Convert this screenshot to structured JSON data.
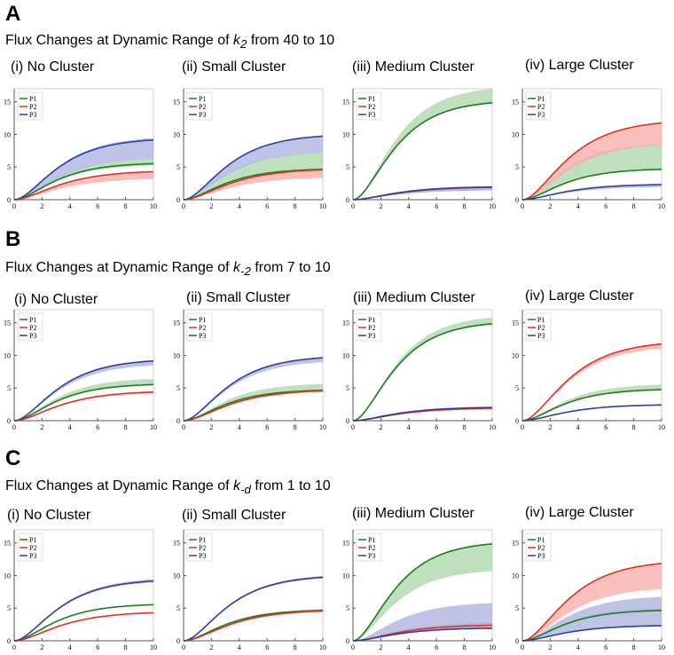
{
  "sections": [
    {
      "letter": "A",
      "title": "Flux Changes at Dynamic Range of k2 from 40 to 10",
      "title_prefix": "Flux Changes at Dynamic Range of ",
      "param_base": "k",
      "param_sub": "2",
      "title_suffix": " from 40 to 10"
    },
    {
      "letter": "B",
      "title": "Flux Changes at Dynamic Range of k-2 from 7 to 10",
      "title_prefix": "Flux Changes at Dynamic Range of ",
      "param_base": "k",
      "param_sub": "-2",
      "title_suffix": " from 7 to 10"
    },
    {
      "letter": "C",
      "title": "Flux Changes at Dynamic Range of k-d from 1 to 10",
      "title_prefix": "Flux Changes at Dynamic Range of ",
      "param_base": "k",
      "param_sub": "-d",
      "title_suffix": " from 1 to 10"
    }
  ],
  "panel_titles": [
    "(i) No Cluster",
    "(ii) Small Cluster",
    "(iii) Medium Cluster",
    "(iv) Large Cluster"
  ],
  "colors": {
    "P1": "#1e7a1e",
    "P2": "#e0301e",
    "P3": "#2b3fa0",
    "P1_band": "#a9d6a6",
    "P2_band": "#f5aaa6",
    "P3_band": "#aab0dd"
  },
  "chart_data": [
    {
      "type": "line",
      "section": "A",
      "title": "(i) No Cluster",
      "xlim": [
        0,
        10
      ],
      "ylim": [
        0,
        17
      ],
      "xticks": [
        0,
        2,
        4,
        6,
        8,
        10
      ],
      "yticks": [
        0,
        5,
        10,
        15
      ],
      "legend": "top-left",
      "series": [
        {
          "name": "P1",
          "final": 5.7,
          "band": [
            5.4,
            6.5
          ]
        },
        {
          "name": "P2",
          "final": 4.5,
          "band": [
            3.3,
            4.5
          ]
        },
        {
          "name": "P3",
          "final": 9.5,
          "band": [
            6.5,
            9.8
          ]
        }
      ]
    },
    {
      "type": "line",
      "section": "A",
      "title": "(ii) Small Cluster",
      "xlim": [
        0,
        10
      ],
      "ylim": [
        0,
        17
      ],
      "xticks": [
        0,
        2,
        4,
        6,
        8,
        10
      ],
      "yticks": [
        0,
        5,
        10,
        15
      ],
      "legend": "top-left",
      "series": [
        {
          "name": "P1",
          "final": 4.8,
          "band": [
            4.8,
            7.5
          ]
        },
        {
          "name": "P2",
          "final": 4.8,
          "band": [
            3.5,
            4.8
          ]
        },
        {
          "name": "P3",
          "final": 10.1,
          "band": [
            7.5,
            10.1
          ]
        }
      ]
    },
    {
      "type": "line",
      "section": "A",
      "title": "(iii) Medium Cluster",
      "xlim": [
        0,
        10
      ],
      "ylim": [
        0,
        17
      ],
      "xticks": [
        0,
        2,
        4,
        6,
        8,
        10
      ],
      "yticks": [
        0,
        5,
        10,
        15
      ],
      "legend": "top-left",
      "series": [
        {
          "name": "P1",
          "final": 15.3,
          "band": [
            15.3,
            17.5
          ]
        },
        {
          "name": "P2",
          "final": 2.0,
          "band": [
            1.5,
            2.0
          ]
        },
        {
          "name": "P3",
          "final": 2.0,
          "band": [
            1.5,
            2.2
          ]
        }
      ]
    },
    {
      "type": "line",
      "section": "A",
      "title": "(iv) Large Cluster",
      "xlim": [
        0,
        10
      ],
      "ylim": [
        0,
        17
      ],
      "xticks": [
        0,
        2,
        4,
        6,
        8,
        10
      ],
      "yticks": [
        0,
        5,
        10,
        15
      ],
      "legend": "top-left",
      "series": [
        {
          "name": "P1",
          "final": 4.8,
          "band": [
            4.8,
            8.8
          ]
        },
        {
          "name": "P2",
          "final": 12.3,
          "band": [
            8.8,
            12.3
          ]
        },
        {
          "name": "P3",
          "final": 2.4,
          "band": [
            2.0,
            2.4
          ]
        }
      ]
    },
    {
      "type": "line",
      "section": "B",
      "title": "(i) No Cluster",
      "xlim": [
        0,
        10
      ],
      "ylim": [
        0,
        17
      ],
      "xticks": [
        0,
        2,
        4,
        6,
        8,
        10
      ],
      "yticks": [
        0,
        5,
        10,
        15
      ],
      "legend": "top-left",
      "series": [
        {
          "name": "P1",
          "final": 5.7,
          "band": [
            5.7,
            6.6
          ]
        },
        {
          "name": "P2",
          "final": 4.6,
          "band": [
            4.4,
            4.6
          ]
        },
        {
          "name": "P3",
          "final": 9.5,
          "band": [
            8.8,
            9.6
          ]
        }
      ]
    },
    {
      "type": "line",
      "section": "B",
      "title": "(ii) Small Cluster",
      "xlim": [
        0,
        10
      ],
      "ylim": [
        0,
        17
      ],
      "xticks": [
        0,
        2,
        4,
        6,
        8,
        10
      ],
      "yticks": [
        0,
        5,
        10,
        15
      ],
      "legend": "top-left",
      "series": [
        {
          "name": "P1",
          "final": 4.8,
          "band": [
            4.8,
            5.8
          ]
        },
        {
          "name": "P2",
          "final": 4.8,
          "band": [
            4.6,
            4.8
          ]
        },
        {
          "name": "P3",
          "final": 10.0,
          "band": [
            9.3,
            10.1
          ]
        }
      ]
    },
    {
      "type": "line",
      "section": "B",
      "title": "(iii) Medium Cluster",
      "xlim": [
        0,
        10
      ],
      "ylim": [
        0,
        17
      ],
      "xticks": [
        0,
        2,
        4,
        6,
        8,
        10
      ],
      "yticks": [
        0,
        5,
        10,
        15
      ],
      "legend": "top-left",
      "series": [
        {
          "name": "P1",
          "final": 15.3,
          "band": [
            15.3,
            16.3
          ]
        },
        {
          "name": "P2",
          "final": 2.0,
          "band": [
            1.8,
            2.0
          ]
        },
        {
          "name": "P3",
          "final": 2.1,
          "band": [
            2.0,
            2.2
          ]
        }
      ]
    },
    {
      "type": "line",
      "section": "B",
      "title": "(iv) Large Cluster",
      "xlim": [
        0,
        10
      ],
      "ylim": [
        0,
        17
      ],
      "xticks": [
        0,
        2,
        4,
        6,
        8,
        10
      ],
      "yticks": [
        0,
        5,
        10,
        15
      ],
      "legend": "top-left",
      "series": [
        {
          "name": "P1",
          "final": 4.9,
          "band": [
            4.9,
            5.7
          ]
        },
        {
          "name": "P2",
          "final": 12.3,
          "band": [
            11.6,
            12.3
          ]
        },
        {
          "name": "P3",
          "final": 2.5,
          "band": [
            2.4,
            2.5
          ]
        }
      ]
    },
    {
      "type": "line",
      "section": "C",
      "title": "(i) No Cluster",
      "xlim": [
        0,
        10
      ],
      "ylim": [
        0,
        17
      ],
      "xticks": [
        0,
        2,
        4,
        6,
        8,
        10
      ],
      "yticks": [
        0,
        5,
        10,
        15
      ],
      "legend": "top-left",
      "series": [
        {
          "name": "P1",
          "final": 5.7,
          "band": [
            5.6,
            5.8
          ]
        },
        {
          "name": "P2",
          "final": 4.5,
          "band": [
            4.4,
            4.6
          ]
        },
        {
          "name": "P3",
          "final": 9.5,
          "band": [
            9.3,
            9.8
          ]
        }
      ]
    },
    {
      "type": "line",
      "section": "C",
      "title": "(ii) Small Cluster",
      "xlim": [
        0,
        10
      ],
      "ylim": [
        0,
        17
      ],
      "xticks": [
        0,
        2,
        4,
        6,
        8,
        10
      ],
      "yticks": [
        0,
        5,
        10,
        15
      ],
      "legend": "top-left",
      "series": [
        {
          "name": "P1",
          "final": 4.8,
          "band": [
            4.7,
            5.0
          ]
        },
        {
          "name": "P2",
          "final": 4.8,
          "band": [
            4.6,
            5.0
          ]
        },
        {
          "name": "P3",
          "final": 10.1,
          "band": [
            9.9,
            10.3
          ]
        }
      ]
    },
    {
      "type": "line",
      "section": "C",
      "title": "(iii) Medium Cluster",
      "xlim": [
        0,
        10
      ],
      "ylim": [
        0,
        17
      ],
      "xticks": [
        0,
        2,
        4,
        6,
        8,
        10
      ],
      "yticks": [
        0,
        5,
        10,
        15
      ],
      "legend": "top-left",
      "series": [
        {
          "name": "P1",
          "final": 15.3,
          "band": [
            11.0,
            15.3
          ]
        },
        {
          "name": "P2",
          "final": 2.5,
          "band": [
            2.0,
            3.0
          ]
        },
        {
          "name": "P3",
          "final": 2.0,
          "band": [
            2.0,
            6.0
          ]
        }
      ]
    },
    {
      "type": "line",
      "section": "C",
      "title": "(iv) Large Cluster",
      "xlim": [
        0,
        10
      ],
      "ylim": [
        0,
        17
      ],
      "xticks": [
        0,
        2,
        4,
        6,
        8,
        10
      ],
      "yticks": [
        0,
        5,
        10,
        15
      ],
      "legend": "top-left",
      "series": [
        {
          "name": "P1",
          "final": 4.8,
          "band": [
            4.8,
            5.2
          ]
        },
        {
          "name": "P2",
          "final": 12.4,
          "band": [
            8.3,
            12.4
          ]
        },
        {
          "name": "P3",
          "final": 2.4,
          "band": [
            2.4,
            7.0
          ]
        }
      ]
    }
  ]
}
